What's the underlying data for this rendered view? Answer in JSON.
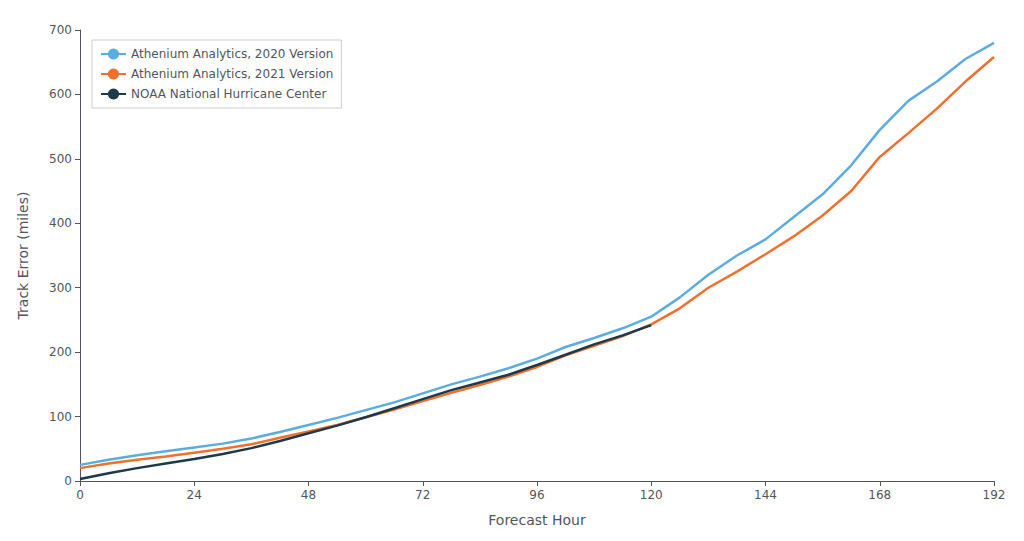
{
  "chart_data": {
    "type": "line",
    "xlabel": "Forecast Hour",
    "ylabel": "Track Error (miles)",
    "xlim": [
      0,
      192
    ],
    "ylim": [
      0,
      700
    ],
    "xticks": [
      0,
      24,
      48,
      72,
      96,
      120,
      144,
      168,
      192
    ],
    "yticks": [
      0,
      100,
      200,
      300,
      400,
      500,
      600,
      700
    ],
    "grid": false,
    "legend": "upper left",
    "series": [
      {
        "name": "Athenium Analytics, 2020 Version",
        "color": "#5DACE0",
        "x": [
          0,
          6,
          12,
          18,
          24,
          30,
          36,
          42,
          48,
          54,
          60,
          66,
          72,
          78,
          84,
          90,
          96,
          102,
          108,
          114,
          120,
          126,
          132,
          138,
          144,
          150,
          156,
          162,
          168,
          174,
          180,
          186,
          192
        ],
        "values": [
          25,
          33,
          40,
          46,
          52,
          58,
          66,
          76,
          87,
          98,
          110,
          122,
          136,
          150,
          162,
          175,
          190,
          208,
          222,
          237,
          255,
          285,
          320,
          350,
          375,
          410,
          445,
          490,
          545,
          590,
          620,
          655,
          680
        ]
      },
      {
        "name": "Athenium Analytics, 2021 Version",
        "color": "#F07030",
        "x": [
          0,
          6,
          12,
          18,
          24,
          30,
          36,
          42,
          48,
          54,
          60,
          66,
          72,
          78,
          84,
          90,
          96,
          102,
          108,
          114,
          120,
          126,
          132,
          138,
          144,
          150,
          156,
          162,
          168,
          174,
          180,
          186,
          192
        ],
        "values": [
          20,
          27,
          33,
          38,
          44,
          50,
          57,
          67,
          77,
          87,
          99,
          111,
          124,
          137,
          149,
          162,
          177,
          195,
          210,
          225,
          243,
          268,
          300,
          325,
          352,
          380,
          412,
          450,
          503,
          540,
          578,
          620,
          658
        ]
      },
      {
        "name": "NOAA National Hurricane Center",
        "color": "#1C3A4A",
        "x": [
          0,
          6,
          12,
          18,
          24,
          30,
          36,
          42,
          48,
          54,
          60,
          66,
          72,
          78,
          84,
          90,
          96,
          102,
          108,
          114,
          120
        ],
        "values": [
          3,
          12,
          20,
          27,
          34,
          42,
          51,
          62,
          74,
          86,
          99,
          113,
          127,
          141,
          153,
          165,
          180,
          196,
          212,
          226,
          242
        ]
      }
    ]
  }
}
